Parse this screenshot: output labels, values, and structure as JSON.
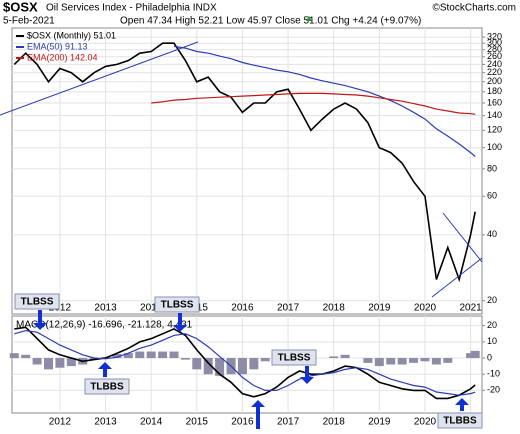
{
  "chart_data": [
    {
      "type": "line",
      "title": "$OSX",
      "subtitle": "Oil Services Index - Philadelphia INDX",
      "date": "5-Feb-2021",
      "quote": "Open 47.34 High 52.21 Low 45.97 Close 51.01 Chg +4.24 (+9.07%)",
      "credit": "©StockCharts.com",
      "ylog": true,
      "grid": true,
      "x": [
        2011.0,
        2011.25,
        2011.5,
        2011.75,
        2012.0,
        2012.25,
        2012.5,
        2012.75,
        2013.0,
        2013.25,
        2013.5,
        2013.75,
        2014.0,
        2014.25,
        2014.5,
        2014.75,
        2015.0,
        2015.25,
        2015.5,
        2015.75,
        2016.0,
        2016.25,
        2016.5,
        2016.75,
        2017.0,
        2017.25,
        2017.5,
        2017.75,
        2018.0,
        2018.25,
        2018.5,
        2018.75,
        2019.0,
        2019.25,
        2019.5,
        2019.75,
        2020.0,
        2020.25,
        2020.5,
        2020.75,
        2021.0,
        2021.1
      ],
      "xlim": [
        2010.95,
        2021.25
      ],
      "xticks": [
        2012,
        2013,
        2014,
        2015,
        2016,
        2017,
        2018,
        2019,
        2020,
        2021
      ],
      "ylim": [
        17.4,
        352
      ],
      "yticks": [
        20,
        40,
        60,
        80,
        100,
        120,
        140,
        160,
        180,
        200,
        220,
        240,
        260,
        280,
        300,
        320
      ],
      "series": [
        {
          "name": "$OSX (Monthly) 51.01",
          "color": "#000000",
          "values": [
            240,
            270,
            240,
            200,
            230,
            220,
            200,
            220,
            235,
            240,
            250,
            270,
            275,
            300,
            300,
            250,
            200,
            210,
            180,
            170,
            145,
            160,
            160,
            180,
            185,
            150,
            120,
            135,
            150,
            160,
            150,
            130,
            100,
            95,
            85,
            70,
            60,
            25,
            35,
            25,
            40,
            51.01
          ]
        },
        {
          "name": "EMA(50) 91.13",
          "color": "#2a3cb4",
          "values": [
            null,
            null,
            null,
            null,
            null,
            null,
            null,
            null,
            null,
            null,
            null,
            null,
            null,
            null,
            290,
            285,
            275,
            270,
            262,
            255,
            245,
            238,
            232,
            226,
            222,
            216,
            208,
            202,
            197,
            192,
            186,
            180,
            172,
            164,
            155,
            145,
            135,
            122,
            113,
            104,
            95,
            91.13
          ]
        },
        {
          "name": "EMA(200) 142.04",
          "color": "#c01818",
          "values": [
            null,
            null,
            null,
            null,
            null,
            null,
            null,
            null,
            null,
            null,
            null,
            null,
            160,
            162,
            165,
            166,
            168,
            169,
            170,
            171,
            172,
            173,
            174,
            175,
            176,
            177,
            177,
            177,
            176,
            175,
            174,
            172,
            169,
            166,
            163,
            159,
            155,
            150,
            147,
            144,
            143,
            142.04
          ]
        }
      ]
    },
    {
      "type": "macd",
      "label": "MACD(12,26,9) -16.696, -21.128, 4.431",
      "grid": true,
      "x": [
        2011.0,
        2011.25,
        2011.5,
        2011.75,
        2012.0,
        2012.25,
        2012.5,
        2012.75,
        2013.0,
        2013.25,
        2013.5,
        2013.75,
        2014.0,
        2014.25,
        2014.5,
        2014.75,
        2015.0,
        2015.25,
        2015.5,
        2015.75,
        2016.0,
        2016.25,
        2016.5,
        2016.75,
        2017.0,
        2017.25,
        2017.5,
        2017.75,
        2018.0,
        2018.25,
        2018.5,
        2018.75,
        2019.0,
        2019.25,
        2019.5,
        2019.75,
        2020.0,
        2020.25,
        2020.5,
        2020.75,
        2021.0,
        2021.1
      ],
      "xlim": [
        2010.95,
        2021.25
      ],
      "xticks": [
        2012,
        2013,
        2014,
        2015,
        2016,
        2017,
        2018,
        2019,
        2020,
        2021
      ],
      "ylim": [
        -34,
        26
      ],
      "yticks": [
        20,
        10,
        0,
        -10,
        -20
      ],
      "series": [
        {
          "color": "#000000",
          "values": [
            18,
            19,
            12,
            5,
            2,
            0,
            -2,
            -1,
            0,
            3,
            6,
            10,
            12,
            15,
            18,
            14,
            5,
            -3,
            -10,
            -15,
            -22,
            -24,
            -22,
            -18,
            -12,
            -8,
            -10,
            -10,
            -8,
            -5,
            -6,
            -10,
            -15,
            -17,
            -19,
            -20,
            -20,
            -25,
            -25,
            -23,
            -19,
            -16.696
          ]
        },
        {
          "color": "#2a3cb4",
          "values": [
            15,
            17,
            16,
            12,
            8,
            5,
            2,
            0,
            -0.5,
            0.5,
            3,
            6,
            8,
            11,
            14,
            15,
            12,
            7,
            1,
            -5,
            -12,
            -17,
            -20,
            -20,
            -17,
            -13,
            -11,
            -10,
            -9,
            -7,
            -6,
            -7,
            -10,
            -13,
            -15,
            -17,
            -18,
            -21,
            -22,
            -23,
            -22,
            -21.128
          ]
        }
      ],
      "histogram": {
        "color": "#8c8ca6",
        "values": [
          3,
          2,
          -4,
          -7,
          -6,
          -5,
          -4,
          -1,
          0.5,
          2.5,
          3,
          4,
          4,
          4,
          4,
          -1,
          -7,
          -10,
          -11,
          -10,
          -10,
          -7,
          -2,
          2,
          5,
          5,
          1,
          0,
          1,
          2,
          0,
          -3,
          -5,
          -4,
          -4,
          -3,
          -2,
          -4,
          -3,
          0,
          3,
          4.431
        ]
      },
      "annotations": [
        "TLBSS",
        "TLBBS",
        "TLBSS",
        "TLBSS",
        "TLBBS"
      ]
    }
  ]
}
